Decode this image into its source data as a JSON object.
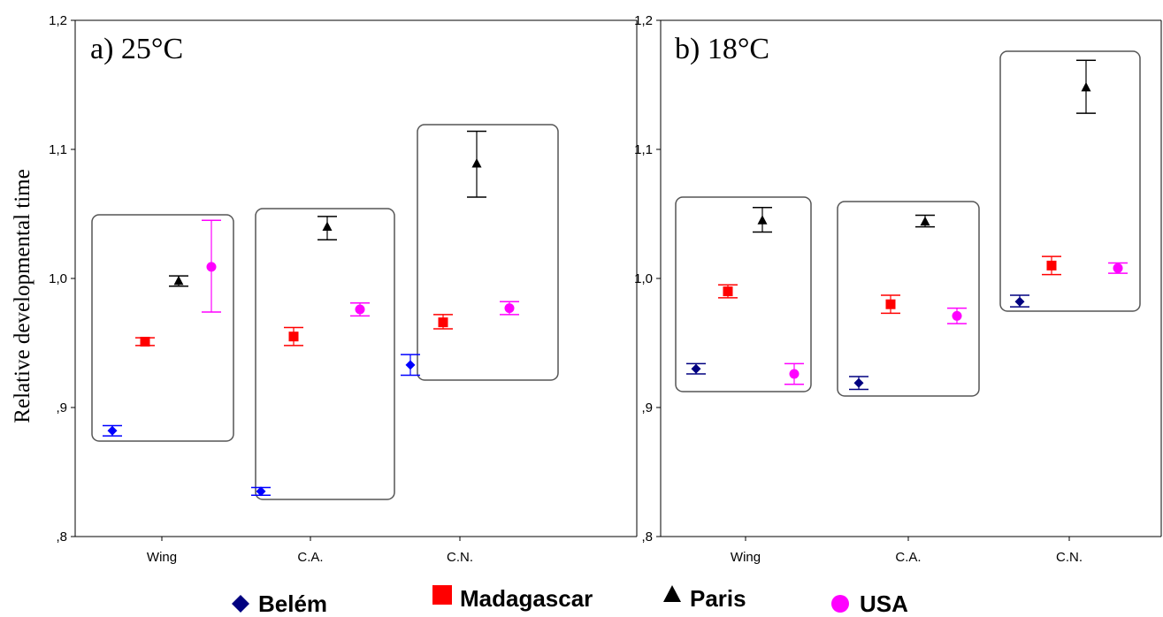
{
  "chart_data": [
    {
      "type": "scatter",
      "title": "a) 25°C",
      "ylabel": "Relative developmental time",
      "xlabel": "",
      "categories": [
        "Wing",
        "C.A.",
        "C.N."
      ],
      "ylim": [
        0.8,
        1.2
      ],
      "yticks": [
        ",8",
        ",9",
        "1,0",
        "1,1",
        "1,2"
      ],
      "series": [
        {
          "name": "Belém",
          "color": "#0000ff",
          "marker": "diamond",
          "values": [
            0.882,
            0.835,
            0.933
          ],
          "err_low": [
            0.878,
            0.832,
            0.925
          ],
          "err_high": [
            0.886,
            0.838,
            0.941
          ]
        },
        {
          "name": "Madagascar",
          "color": "#ff0000",
          "marker": "square",
          "values": [
            0.951,
            0.955,
            0.966
          ],
          "err_low": [
            0.948,
            0.948,
            0.961
          ],
          "err_high": [
            0.954,
            0.962,
            0.972
          ]
        },
        {
          "name": "Paris",
          "color": "#000000",
          "marker": "triangle",
          "values": [
            0.998,
            1.04,
            1.089
          ],
          "err_low": [
            0.994,
            1.03,
            1.063
          ],
          "err_high": [
            1.002,
            1.048,
            1.114
          ]
        },
        {
          "name": "USA",
          "color": "#ff00ff",
          "marker": "circle",
          "values": [
            1.009,
            0.976,
            0.977
          ],
          "err_low": [
            0.974,
            0.971,
            0.972
          ],
          "err_high": [
            1.045,
            0.981,
            0.982
          ]
        }
      ]
    },
    {
      "type": "scatter",
      "title": "b) 18°C",
      "ylabel": "",
      "xlabel": "",
      "categories": [
        "Wing",
        "C.A.",
        "C.N."
      ],
      "ylim": [
        0.8,
        1.2
      ],
      "yticks": [
        ",8",
        ",9",
        "1,0",
        "1,1",
        "1,2"
      ],
      "series": [
        {
          "name": "Belém",
          "color": "#000080",
          "marker": "diamond",
          "values": [
            0.93,
            0.919,
            0.982
          ],
          "err_low": [
            0.926,
            0.914,
            0.978
          ],
          "err_high": [
            0.934,
            0.924,
            0.987
          ]
        },
        {
          "name": "Madagascar",
          "color": "#ff0000",
          "marker": "square",
          "values": [
            0.99,
            0.98,
            1.01
          ],
          "err_low": [
            0.985,
            0.973,
            1.003
          ],
          "err_high": [
            0.995,
            0.987,
            1.017
          ]
        },
        {
          "name": "Paris",
          "color": "#000000",
          "marker": "triangle",
          "values": [
            1.045,
            1.044,
            1.148
          ],
          "err_low": [
            1.036,
            1.04,
            1.128
          ],
          "err_high": [
            1.055,
            1.049,
            1.169
          ]
        },
        {
          "name": "USA",
          "color": "#ff00ff",
          "marker": "circle",
          "values": [
            0.926,
            0.971,
            1.008
          ],
          "err_low": [
            0.918,
            0.965,
            1.004
          ],
          "err_high": [
            0.934,
            0.977,
            1.012
          ]
        }
      ]
    }
  ],
  "legend": [
    {
      "label": "Belém",
      "color": "#000080",
      "marker": "diamond"
    },
    {
      "label": "Madagascar",
      "color": "#ff0000",
      "marker": "square"
    },
    {
      "label": "Paris",
      "color": "#000000",
      "marker": "triangle"
    },
    {
      "label": "USA",
      "color": "#ff00ff",
      "marker": "circle"
    }
  ]
}
